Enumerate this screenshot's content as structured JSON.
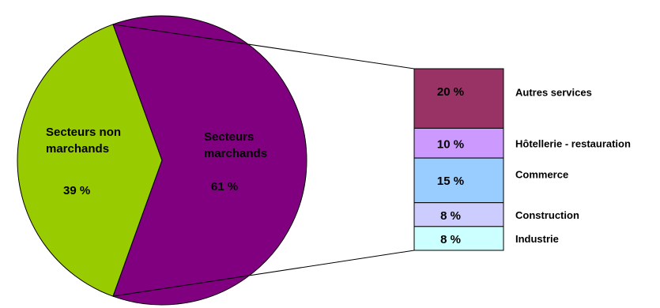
{
  "chart_data": {
    "type": "pie",
    "subtype": "pie-of-bar",
    "slices": [
      {
        "label": [
          "Secteurs non",
          "marchands"
        ],
        "value_label": "39 %",
        "value": 39,
        "color": "#99cc00"
      },
      {
        "label": [
          "Secteurs",
          "marchands"
        ],
        "value_label": "61 %",
        "value": 61,
        "color": "#800080"
      }
    ],
    "breakdown": {
      "of_slice": "Secteurs marchands",
      "segments": [
        {
          "label": "Autres services",
          "value_label": "20 %",
          "value": 20,
          "color": "#993366"
        },
        {
          "label": "Hôtellerie - restauration",
          "value_label": "10 %",
          "value": 10,
          "color": "#cc99ff"
        },
        {
          "label": "Commerce",
          "value_label": "15 %",
          "value": 15,
          "color": "#99ccff"
        },
        {
          "label": "Construction",
          "value_label": "8 %",
          "value": 8,
          "color": "#ccccff"
        },
        {
          "label": "Industrie",
          "value_label": "8 %",
          "value": 8,
          "color": "#ccffff"
        }
      ]
    },
    "legend": "none"
  }
}
